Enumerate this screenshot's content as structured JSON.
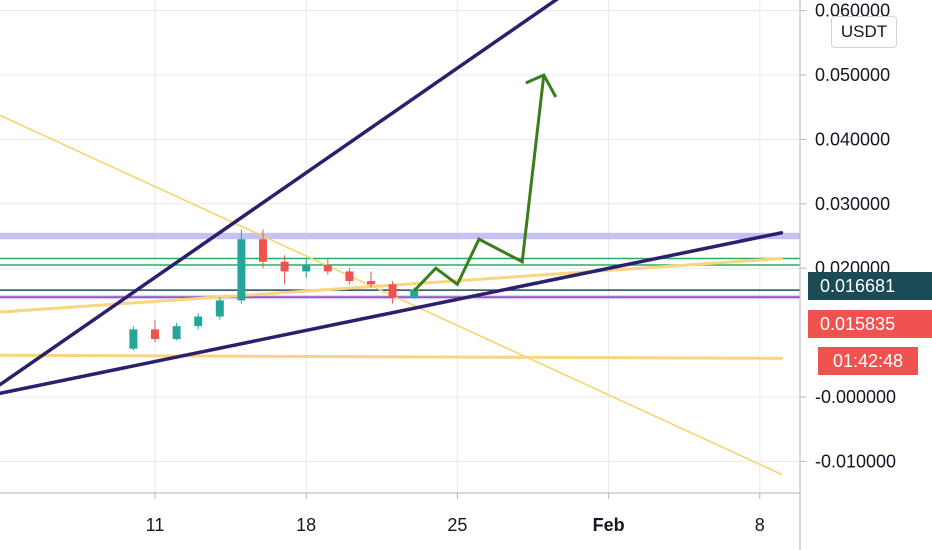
{
  "chart_data": {
    "type": "candlestick",
    "y_axis": {
      "position": "right",
      "range": [
        -0.015,
        0.062
      ],
      "ticks": [
        "0.060000",
        "0.050000",
        "0.040000",
        "0.030000",
        "0.020000",
        "-0.000000",
        "-0.010000"
      ],
      "tick_values": [
        0.06,
        0.05,
        0.04,
        0.03,
        0.02,
        0.0,
        -0.01
      ]
    },
    "x_axis": {
      "tick_labels": [
        "11",
        "18",
        "25",
        "Feb",
        "8"
      ],
      "tick_dates": [
        "Jan 11",
        "Jan 18",
        "Jan 25",
        "Feb 1",
        "Feb 8"
      ],
      "grid": true
    },
    "currency": "USDT",
    "price_badges": [
      {
        "kind": "last",
        "label": "0.016681",
        "value": 0.016681,
        "color": "#1b4b57"
      },
      {
        "kind": "close",
        "label": "0.015835",
        "value": 0.015835,
        "color": "#ef5350"
      },
      {
        "kind": "countdown",
        "label": "01:42:48",
        "color": "#ef5350"
      }
    ],
    "candles": [
      {
        "date": "Jan 10",
        "o": 0.0075,
        "h": 0.011,
        "l": 0.0072,
        "c": 0.0105
      },
      {
        "date": "Jan 11",
        "o": 0.0105,
        "h": 0.012,
        "l": 0.0085,
        "c": 0.009
      },
      {
        "date": "Jan 12",
        "o": 0.009,
        "h": 0.0115,
        "l": 0.0088,
        "c": 0.011
      },
      {
        "date": "Jan 13",
        "o": 0.011,
        "h": 0.013,
        "l": 0.0105,
        "c": 0.0125
      },
      {
        "date": "Jan 14",
        "o": 0.0125,
        "h": 0.0155,
        "l": 0.012,
        "c": 0.015
      },
      {
        "date": "Jan 15",
        "o": 0.015,
        "h": 0.026,
        "l": 0.0145,
        "c": 0.0245
      },
      {
        "date": "Jan 16",
        "o": 0.0245,
        "h": 0.026,
        "l": 0.02,
        "c": 0.021
      },
      {
        "date": "Jan 17",
        "o": 0.021,
        "h": 0.022,
        "l": 0.0175,
        "c": 0.0195
      },
      {
        "date": "Jan 18",
        "o": 0.0195,
        "h": 0.0215,
        "l": 0.0185,
        "c": 0.0205
      },
      {
        "date": "Jan 19",
        "o": 0.0205,
        "h": 0.0215,
        "l": 0.019,
        "c": 0.0195
      },
      {
        "date": "Jan 20",
        "o": 0.0195,
        "h": 0.02,
        "l": 0.0175,
        "c": 0.018
      },
      {
        "date": "Jan 21",
        "o": 0.018,
        "h": 0.0195,
        "l": 0.017,
        "c": 0.0175
      },
      {
        "date": "Jan 22",
        "o": 0.0175,
        "h": 0.018,
        "l": 0.0145,
        "c": 0.0155
      },
      {
        "date": "Jan 23",
        "o": 0.0155,
        "h": 0.017,
        "l": 0.0152,
        "c": 0.0167
      }
    ],
    "drawings": {
      "channel_upper": {
        "from": [
          "Jan 3",
          0.0
        ],
        "to": [
          "Jan 31",
          0.065
        ],
        "color": "#2e1f6e"
      },
      "channel_lower": {
        "from": [
          "Jan 3",
          0.0
        ],
        "to": [
          "Feb 9",
          0.0255
        ],
        "color": "#2e1f6e"
      },
      "descending_line": {
        "from": [
          "Jan 3",
          0.045
        ],
        "to": [
          "Feb 9",
          -0.012
        ],
        "color": "#f6d365"
      },
      "yellow_rising": {
        "from": [
          "Jan 3",
          0.013
        ],
        "to": [
          "Feb 9",
          0.0215
        ],
        "color": "#f8d57e"
      },
      "yellow_flat": {
        "from": [
          "Jan 3",
          0.0065
        ],
        "to": [
          "Feb 9",
          0.006
        ],
        "color": "#f8d57e"
      },
      "horizontal_levels": [
        {
          "value": 0.0215,
          "color": "#27ae60"
        },
        {
          "value": 0.0205,
          "color": "#27ae60"
        },
        {
          "value": 0.0166,
          "color": "#1b4b57"
        },
        {
          "value": 0.0155,
          "color": "#8e44ad"
        }
      ],
      "bands": [
        {
          "from": 0.0245,
          "to": 0.0255,
          "color": "#b6b1f0"
        },
        {
          "from": 0.0153,
          "to": 0.0158,
          "color": "#c7c2f5"
        }
      ],
      "projection_path": [
        [
          "Jan 23",
          0.0165
        ],
        [
          "Jan 24",
          0.02
        ],
        [
          "Jan 25",
          0.0175
        ],
        [
          "Jan 26",
          0.0245
        ],
        [
          "Jan 28",
          0.021
        ],
        [
          "Jan 29",
          0.05
        ],
        [
          "Jan 31",
          0.053
        ],
        [
          "Feb 1",
          0.0495
        ]
      ],
      "projection_color": "#3a7d1e"
    }
  }
}
